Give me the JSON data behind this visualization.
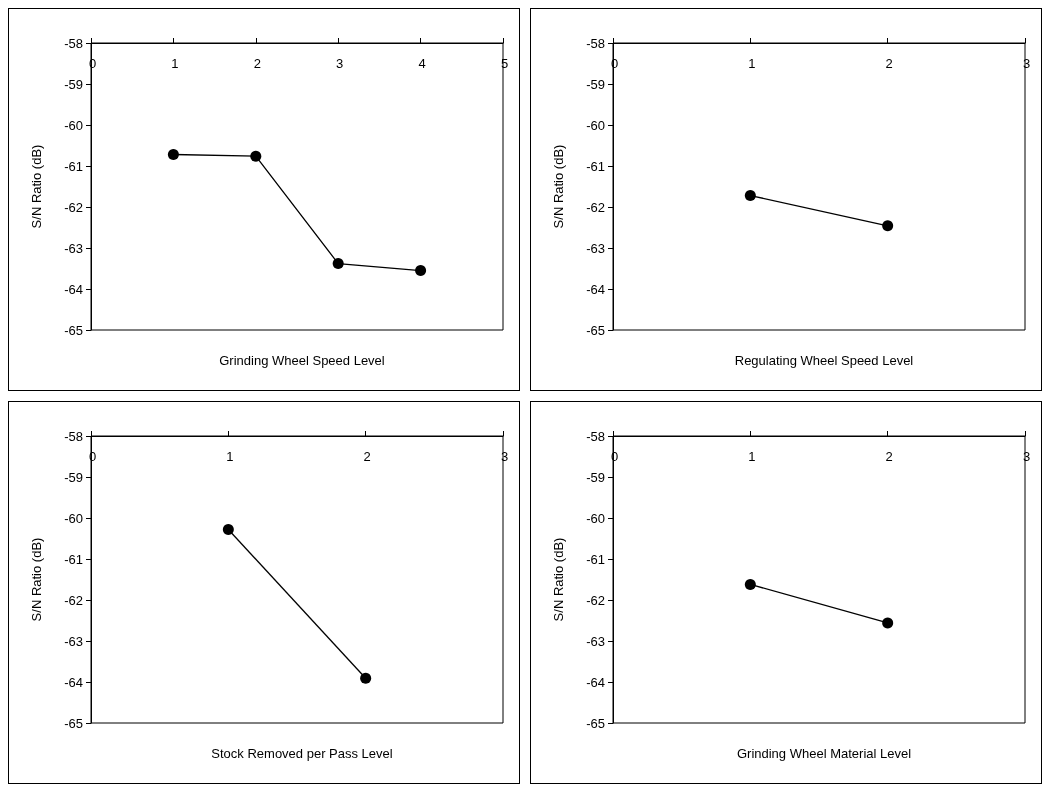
{
  "chart_data": [
    {
      "type": "line",
      "xlabel": "Grinding Wheel Speed Level",
      "ylabel": "S/N Ratio (dB)",
      "x": [
        1,
        2,
        3,
        4
      ],
      "values": [
        -60.72,
        -60.76,
        -63.38,
        -63.55
      ],
      "color": "#000000",
      "xlim": [
        0,
        5
      ],
      "xticks": [
        0,
        1,
        2,
        3,
        4,
        5
      ],
      "ylim": [
        -65,
        -58
      ],
      "yticks": [
        -65,
        -64,
        -63,
        -62,
        -61,
        -60,
        -59,
        -58
      ],
      "grid": false,
      "marker": "circle",
      "line_style": "solid"
    },
    {
      "type": "line",
      "xlabel": "Regulating Wheel Speed Level",
      "ylabel": "S/N Ratio (dB)",
      "x": [
        1,
        2
      ],
      "values": [
        -61.72,
        -62.46
      ],
      "color": "#000000",
      "xlim": [
        0,
        3
      ],
      "xticks": [
        0,
        1,
        2,
        3
      ],
      "ylim": [
        -65,
        -58
      ],
      "yticks": [
        -65,
        -64,
        -63,
        -62,
        -61,
        -60,
        -59,
        -58
      ],
      "grid": false,
      "marker": "circle",
      "line_style": "solid"
    },
    {
      "type": "line",
      "xlabel": "Stock Removed per Pass Level",
      "ylabel": "S/N Ratio (dB)",
      "x": [
        1,
        2
      ],
      "values": [
        -60.28,
        -63.91
      ],
      "color": "#000000",
      "xlim": [
        0,
        3
      ],
      "xticks": [
        0,
        1,
        2,
        3
      ],
      "ylim": [
        -65,
        -58
      ],
      "yticks": [
        -65,
        -64,
        -63,
        -62,
        -61,
        -60,
        -59,
        -58
      ],
      "grid": false,
      "marker": "circle",
      "line_style": "solid"
    },
    {
      "type": "line",
      "xlabel": "Grinding Wheel Material Level",
      "ylabel": "S/N Ratio (dB)",
      "x": [
        1,
        2
      ],
      "values": [
        -61.62,
        -62.56
      ],
      "color": "#000000",
      "xlim": [
        0,
        3
      ],
      "xticks": [
        0,
        1,
        2,
        3
      ],
      "ylim": [
        -65,
        -58
      ],
      "yticks": [
        -65,
        -64,
        -63,
        -62,
        -61,
        -60,
        -59,
        -58
      ],
      "grid": false,
      "marker": "circle",
      "line_style": "solid"
    }
  ]
}
